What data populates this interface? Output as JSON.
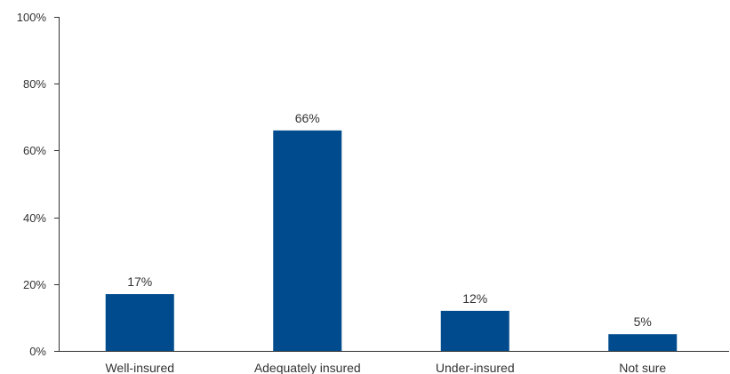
{
  "chart_data": {
    "type": "bar",
    "categories": [
      "Well-insured",
      "Adequately insured",
      "Under-insured",
      "Not sure"
    ],
    "values": [
      17,
      66,
      12,
      5
    ],
    "data_labels": [
      "17%",
      "66%",
      "12%",
      "5%"
    ],
    "title": "",
    "xlabel": "",
    "ylabel": "",
    "ylim": [
      0,
      100
    ],
    "yticks": [
      0,
      20,
      40,
      60,
      80,
      100
    ],
    "ytick_labels": [
      "0%",
      "20%",
      "40%",
      "60%",
      "80%",
      "100%"
    ],
    "grid": false,
    "legend": "none",
    "bar_color": "#004B8D"
  }
}
